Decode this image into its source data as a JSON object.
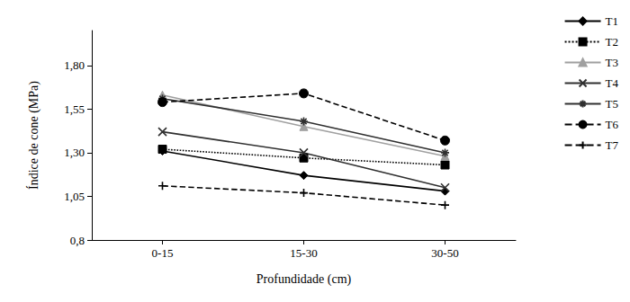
{
  "chart_data": {
    "type": "line",
    "x_label": "Profundidade (cm)",
    "y_label": "Índice de cone (MPa)",
    "categories": [
      "0-15",
      "15-30",
      "30-50"
    ],
    "series": [
      {
        "name": "T1",
        "color": "#000000",
        "marker": "diamond",
        "line_style": "solid",
        "values": [
          1.31,
          1.17,
          1.08
        ]
      },
      {
        "name": "T2",
        "color": "#000000",
        "marker": "square",
        "line_style": "dotted",
        "values": [
          1.32,
          1.27,
          1.23
        ]
      },
      {
        "name": "T3",
        "color": "#a0a0a0",
        "marker": "triangle",
        "line_style": "solid",
        "values": [
          1.63,
          1.45,
          1.28
        ]
      },
      {
        "name": "T4",
        "color": "#303030",
        "marker": "x",
        "line_style": "solid",
        "values": [
          1.42,
          1.3,
          1.1
        ]
      },
      {
        "name": "T5",
        "color": "#303030",
        "marker": "asterisk",
        "line_style": "solid",
        "values": [
          1.61,
          1.48,
          1.3
        ]
      },
      {
        "name": "T6",
        "color": "#000000",
        "marker": "circle",
        "line_style": "dashed",
        "values": [
          1.59,
          1.64,
          1.37
        ]
      },
      {
        "name": "T7",
        "color": "#000000",
        "marker": "plus",
        "line_style": "dashed",
        "values": [
          1.11,
          1.07,
          1.0
        ]
      }
    ],
    "ylim": [
      0.8,
      2.0
    ],
    "yticks": [
      {
        "value": 0.8,
        "label": "0,8"
      },
      {
        "value": 1.05,
        "label": "1,05"
      },
      {
        "value": 1.3,
        "label": "1,30"
      },
      {
        "value": 1.55,
        "label": "1,55"
      },
      {
        "value": 1.8,
        "label": "1,80"
      }
    ],
    "grid": false,
    "legend": "right"
  }
}
